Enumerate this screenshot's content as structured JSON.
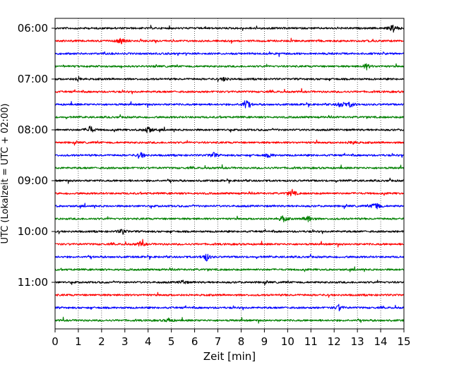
{
  "chart_data": {
    "type": "line",
    "title": "",
    "xlabel": "Zeit  [min]",
    "ylabel": "UTC (Lokalzeit = UTC + 02:00)",
    "xlim": [
      0,
      15
    ],
    "x_ticks": [
      "0",
      "1",
      "2",
      "3",
      "4",
      "5",
      "6",
      "7",
      "8",
      "9",
      "10",
      "11",
      "12",
      "13",
      "14",
      "15"
    ],
    "y_tick_labels": [
      "06:00",
      "07:00",
      "08:00",
      "09:00",
      "10:00",
      "11:00"
    ],
    "grid": "vertical-dotted",
    "trace_interval_minutes": 15,
    "colors_cycle": [
      "#000000",
      "#ff0000",
      "#0000ff",
      "#008000"
    ],
    "traces": [
      {
        "start": "06:00",
        "color": "#000000",
        "events": [
          {
            "t": 14.55,
            "amp": 6
          }
        ]
      },
      {
        "start": "06:15",
        "color": "#ff0000",
        "events": [
          {
            "t": 2.85,
            "amp": 5
          }
        ]
      },
      {
        "start": "06:30",
        "color": "#0000ff",
        "events": []
      },
      {
        "start": "06:45",
        "color": "#008000",
        "events": [
          {
            "t": 13.4,
            "amp": 4
          }
        ]
      },
      {
        "start": "07:00",
        "color": "#000000",
        "events": [
          {
            "t": 1.0,
            "amp": 3
          },
          {
            "t": 7.3,
            "amp": 3
          }
        ]
      },
      {
        "start": "07:15",
        "color": "#ff0000",
        "events": []
      },
      {
        "start": "07:30",
        "color": "#0000ff",
        "events": [
          {
            "t": 8.2,
            "amp": 8
          },
          {
            "t": 12.3,
            "amp": 5
          },
          {
            "t": 12.7,
            "amp": 4
          }
        ]
      },
      {
        "start": "07:45",
        "color": "#008000",
        "events": []
      },
      {
        "start": "08:00",
        "color": "#000000",
        "events": [
          {
            "t": 1.5,
            "amp": 6
          },
          {
            "t": 4.0,
            "amp": 6
          }
        ]
      },
      {
        "start": "08:15",
        "color": "#ff0000",
        "events": [
          {
            "t": 12.8,
            "amp": 3
          }
        ]
      },
      {
        "start": "08:30",
        "color": "#0000ff",
        "events": [
          {
            "t": 3.7,
            "amp": 4
          },
          {
            "t": 6.8,
            "amp": 4
          },
          {
            "t": 9.2,
            "amp": 3
          }
        ]
      },
      {
        "start": "08:45",
        "color": "#008000",
        "events": []
      },
      {
        "start": "09:00",
        "color": "#000000",
        "events": []
      },
      {
        "start": "09:15",
        "color": "#ff0000",
        "events": [
          {
            "t": 10.2,
            "amp": 5
          }
        ]
      },
      {
        "start": "09:30",
        "color": "#0000ff",
        "events": [
          {
            "t": 13.8,
            "amp": 7
          }
        ]
      },
      {
        "start": "09:45",
        "color": "#008000",
        "events": [
          {
            "t": 9.8,
            "amp": 5
          },
          {
            "t": 10.9,
            "amp": 6
          }
        ]
      },
      {
        "start": "10:00",
        "color": "#000000",
        "events": [
          {
            "t": 2.9,
            "amp": 4
          }
        ]
      },
      {
        "start": "10:15",
        "color": "#ff0000",
        "events": [
          {
            "t": 3.7,
            "amp": 4
          }
        ]
      },
      {
        "start": "10:30",
        "color": "#0000ff",
        "events": [
          {
            "t": 6.5,
            "amp": 6
          }
        ]
      },
      {
        "start": "10:45",
        "color": "#008000",
        "events": []
      },
      {
        "start": "11:00",
        "color": "#000000",
        "events": [
          {
            "t": 5.5,
            "amp": 3
          }
        ]
      },
      {
        "start": "11:15",
        "color": "#ff0000",
        "events": []
      },
      {
        "start": "11:30",
        "color": "#0000ff",
        "events": [
          {
            "t": 12.2,
            "amp": 4
          }
        ]
      },
      {
        "start": "11:45",
        "color": "#008000",
        "events": [
          {
            "t": 4.9,
            "amp": 3
          }
        ]
      }
    ]
  }
}
